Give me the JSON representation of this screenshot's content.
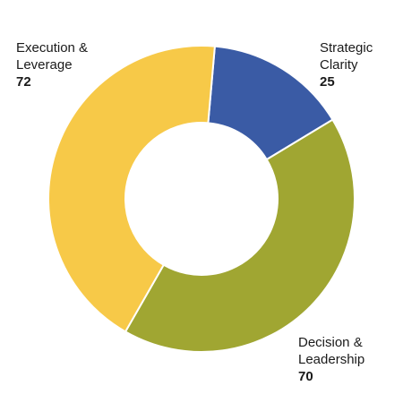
{
  "chart_data": {
    "type": "pie",
    "donut": true,
    "title": "",
    "series": [
      {
        "label_lines": [
          "Strategic",
          "Clarity"
        ],
        "value": 25,
        "value_label": "25",
        "color": "#3a5ba5"
      },
      {
        "label_lines": [
          "Decision &",
          "Leadership"
        ],
        "value": 70,
        "value_label": "70",
        "color": "#a0a632"
      },
      {
        "label_lines": [
          "Execution &",
          "Leverage"
        ],
        "value": 72,
        "value_label": "72",
        "color": "#f7c948"
      }
    ],
    "legend": "none"
  }
}
